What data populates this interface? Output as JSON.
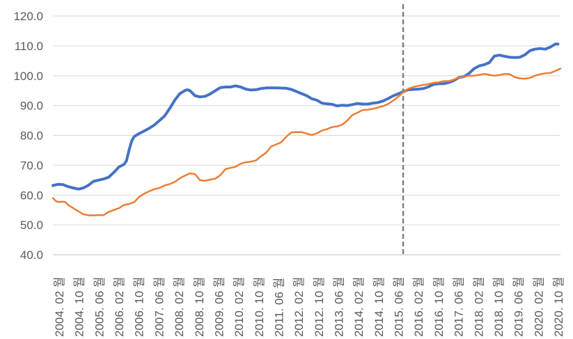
{
  "chart_data": {
    "type": "line",
    "title": "",
    "xlabel": "",
    "ylabel": "",
    "ylim": [
      40,
      120
    ],
    "y_ticks": [
      "40.0",
      "50.0",
      "60.0",
      "70.0",
      "80.0",
      "90.0",
      "100.0",
      "110.0",
      "120.0"
    ],
    "x_tick_labels": [
      "2004. 02 월",
      "2004. 10 월",
      "2005. 06 월",
      "2006. 02 월",
      "2006. 10 월",
      "2007. 06 월",
      "2008. 02 월",
      "2008. 10 월",
      "2009. 06 월",
      "2010. 02 월",
      "2010. 10 월",
      "2011. 06 월",
      "2012. 02 월",
      "2012. 10 월",
      "2013. 06 월",
      "2014. 02 월",
      "2014. 10 월",
      "2015. 06 월",
      "2016. 02 월",
      "2016. 10 월",
      "2017. 06 월",
      "2018. 02 월",
      "2018. 10 월",
      "2019. 06 월",
      "2020. 02 월",
      "2020. 10 월"
    ],
    "x_range": [
      "2004-02",
      "2020-10"
    ],
    "grid": "horizontal",
    "legend": "none",
    "reference_line": {
      "x": "2015-08",
      "style": "dashed",
      "color": "#7f7f7f"
    },
    "series": [
      {
        "color": "#4472c4",
        "points": [
          [
            "2004-02",
            63.2
          ],
          [
            "2004-04",
            63.6
          ],
          [
            "2004-06",
            63.5
          ],
          [
            "2004-08",
            62.8
          ],
          [
            "2004-10",
            62.4
          ],
          [
            "2004-12",
            62.0
          ],
          [
            "2005-02",
            62.4
          ],
          [
            "2005-04",
            63.3
          ],
          [
            "2005-06",
            64.6
          ],
          [
            "2005-08",
            65.0
          ],
          [
            "2005-10",
            65.4
          ],
          [
            "2005-12",
            66.0
          ],
          [
            "2006-02",
            67.6
          ],
          [
            "2006-04",
            69.4
          ],
          [
            "2006-06",
            70.3
          ],
          [
            "2006-07",
            71.5
          ],
          [
            "2006-08",
            75.0
          ],
          [
            "2006-09",
            78.0
          ],
          [
            "2006-10",
            79.6
          ],
          [
            "2006-12",
            80.6
          ],
          [
            "2007-02",
            81.5
          ],
          [
            "2007-04",
            82.4
          ],
          [
            "2007-06",
            83.5
          ],
          [
            "2007-08",
            85.0
          ],
          [
            "2007-10",
            86.5
          ],
          [
            "2007-12",
            89.0
          ],
          [
            "2008-02",
            91.8
          ],
          [
            "2008-04",
            94.0
          ],
          [
            "2008-06",
            95.0
          ],
          [
            "2008-07",
            95.3
          ],
          [
            "2008-08",
            95.0
          ],
          [
            "2008-10",
            93.3
          ],
          [
            "2008-12",
            92.9
          ],
          [
            "2009-02",
            93.1
          ],
          [
            "2009-04",
            93.9
          ],
          [
            "2009-06",
            95.0
          ],
          [
            "2009-08",
            96.0
          ],
          [
            "2009-10",
            96.2
          ],
          [
            "2009-12",
            96.2
          ],
          [
            "2010-02",
            96.6
          ],
          [
            "2010-04",
            96.2
          ],
          [
            "2010-06",
            95.5
          ],
          [
            "2010-08",
            95.2
          ],
          [
            "2010-10",
            95.3
          ],
          [
            "2010-12",
            95.7
          ],
          [
            "2011-02",
            95.9
          ],
          [
            "2011-06",
            95.9
          ],
          [
            "2011-10",
            95.8
          ],
          [
            "2011-12",
            95.4
          ],
          [
            "2012-02",
            94.7
          ],
          [
            "2012-06",
            93.3
          ],
          [
            "2012-08",
            92.3
          ],
          [
            "2012-10",
            91.8
          ],
          [
            "2012-12",
            90.8
          ],
          [
            "2013-02",
            90.6
          ],
          [
            "2013-04",
            90.4
          ],
          [
            "2013-06",
            89.9
          ],
          [
            "2013-08",
            90.1
          ],
          [
            "2013-10",
            90.0
          ],
          [
            "2013-12",
            90.3
          ],
          [
            "2014-02",
            90.7
          ],
          [
            "2014-04",
            90.5
          ],
          [
            "2014-06",
            90.5
          ],
          [
            "2014-08",
            90.8
          ],
          [
            "2014-10",
            91.0
          ],
          [
            "2014-12",
            91.5
          ],
          [
            "2015-02",
            92.3
          ],
          [
            "2015-04",
            93.2
          ],
          [
            "2015-06",
            93.9
          ],
          [
            "2015-08",
            94.6
          ],
          [
            "2015-10",
            95.3
          ],
          [
            "2015-12",
            95.4
          ],
          [
            "2016-02",
            95.5
          ],
          [
            "2016-04",
            95.7
          ],
          [
            "2016-06",
            96.3
          ],
          [
            "2016-08",
            97.1
          ],
          [
            "2016-10",
            97.3
          ],
          [
            "2016-12",
            97.3
          ],
          [
            "2017-02",
            97.7
          ],
          [
            "2017-04",
            98.4
          ],
          [
            "2017-06",
            99.4
          ],
          [
            "2017-08",
            99.7
          ],
          [
            "2017-10",
            100.8
          ],
          [
            "2017-12",
            102.4
          ],
          [
            "2018-02",
            103.3
          ],
          [
            "2018-04",
            103.7
          ],
          [
            "2018-06",
            104.4
          ],
          [
            "2018-08",
            106.6
          ],
          [
            "2018-10",
            106.9
          ],
          [
            "2018-12",
            106.5
          ],
          [
            "2019-02",
            106.2
          ],
          [
            "2019-04",
            106.1
          ],
          [
            "2019-06",
            106.2
          ],
          [
            "2019-08",
            107.0
          ],
          [
            "2019-10",
            108.4
          ],
          [
            "2019-12",
            108.9
          ],
          [
            "2020-02",
            109.1
          ],
          [
            "2020-04",
            108.9
          ],
          [
            "2020-06",
            109.6
          ],
          [
            "2020-08",
            110.6
          ],
          [
            "2020-09",
            110.6
          ]
        ]
      },
      {
        "color": "#ed7d31",
        "points": [
          [
            "2004-02",
            59.0
          ],
          [
            "2004-03",
            58.1
          ],
          [
            "2004-04",
            57.7
          ],
          [
            "2004-06",
            57.8
          ],
          [
            "2004-07",
            57.6
          ],
          [
            "2004-08",
            56.7
          ],
          [
            "2004-10",
            55.6
          ],
          [
            "2004-12",
            54.6
          ],
          [
            "2005-02",
            53.6
          ],
          [
            "2005-04",
            53.2
          ],
          [
            "2005-06",
            53.2
          ],
          [
            "2005-08",
            53.3
          ],
          [
            "2005-10",
            53.3
          ],
          [
            "2005-12",
            54.4
          ],
          [
            "2006-02",
            55.0
          ],
          [
            "2006-04",
            55.6
          ],
          [
            "2006-06",
            56.7
          ],
          [
            "2006-08",
            57.0
          ],
          [
            "2006-10",
            57.6
          ],
          [
            "2006-12",
            59.4
          ],
          [
            "2007-02",
            60.5
          ],
          [
            "2007-04",
            61.3
          ],
          [
            "2007-06",
            62.0
          ],
          [
            "2007-08",
            62.4
          ],
          [
            "2007-10",
            63.2
          ],
          [
            "2007-12",
            63.7
          ],
          [
            "2008-02",
            64.4
          ],
          [
            "2008-04",
            65.6
          ],
          [
            "2008-06",
            66.5
          ],
          [
            "2008-08",
            67.3
          ],
          [
            "2008-10",
            67.0
          ],
          [
            "2008-12",
            65.0
          ],
          [
            "2009-02",
            64.8
          ],
          [
            "2009-04",
            65.2
          ],
          [
            "2009-06",
            65.5
          ],
          [
            "2009-08",
            66.7
          ],
          [
            "2009-10",
            68.7
          ],
          [
            "2009-12",
            69.1
          ],
          [
            "2010-02",
            69.5
          ],
          [
            "2010-04",
            70.5
          ],
          [
            "2010-06",
            71.0
          ],
          [
            "2010-08",
            71.2
          ],
          [
            "2010-10",
            71.6
          ],
          [
            "2010-12",
            73.0
          ],
          [
            "2011-02",
            74.2
          ],
          [
            "2011-04",
            76.3
          ],
          [
            "2011-06",
            77.0
          ],
          [
            "2011-08",
            77.7
          ],
          [
            "2011-10",
            79.6
          ],
          [
            "2011-12",
            81.0
          ],
          [
            "2012-02",
            81.1
          ],
          [
            "2012-04",
            81.1
          ],
          [
            "2012-06",
            80.6
          ],
          [
            "2012-08",
            80.1
          ],
          [
            "2012-10",
            80.7
          ],
          [
            "2012-12",
            81.6
          ],
          [
            "2013-02",
            82.1
          ],
          [
            "2013-04",
            82.8
          ],
          [
            "2013-06",
            83.0
          ],
          [
            "2013-08",
            83.6
          ],
          [
            "2013-10",
            85.0
          ],
          [
            "2013-12",
            86.8
          ],
          [
            "2014-02",
            87.6
          ],
          [
            "2014-04",
            88.5
          ],
          [
            "2014-06",
            88.6
          ],
          [
            "2014-08",
            88.9
          ],
          [
            "2014-10",
            89.3
          ],
          [
            "2014-12",
            89.8
          ],
          [
            "2015-02",
            90.5
          ],
          [
            "2015-04",
            91.6
          ],
          [
            "2015-06",
            92.9
          ],
          [
            "2015-08",
            94.4
          ],
          [
            "2015-10",
            95.6
          ],
          [
            "2015-12",
            96.2
          ],
          [
            "2016-02",
            96.6
          ],
          [
            "2016-04",
            96.9
          ],
          [
            "2016-06",
            97.2
          ],
          [
            "2016-08",
            97.6
          ],
          [
            "2016-10",
            97.8
          ],
          [
            "2016-12",
            98.2
          ],
          [
            "2017-02",
            98.2
          ],
          [
            "2017-04",
            98.7
          ],
          [
            "2017-06",
            99.4
          ],
          [
            "2017-08",
            99.7
          ],
          [
            "2017-10",
            100.0
          ],
          [
            "2017-12",
            100.0
          ],
          [
            "2018-02",
            100.3
          ],
          [
            "2018-04",
            100.6
          ],
          [
            "2018-06",
            100.3
          ],
          [
            "2018-08",
            100.0
          ],
          [
            "2018-10",
            100.2
          ],
          [
            "2018-12",
            100.6
          ],
          [
            "2019-02",
            100.5
          ],
          [
            "2019-04",
            99.5
          ],
          [
            "2019-06",
            99.1
          ],
          [
            "2019-08",
            99.0
          ],
          [
            "2019-10",
            99.3
          ],
          [
            "2019-12",
            100.0
          ],
          [
            "2020-02",
            100.5
          ],
          [
            "2020-04",
            100.8
          ],
          [
            "2020-06",
            100.9
          ],
          [
            "2020-08",
            101.6
          ],
          [
            "2020-10",
            102.4
          ]
        ]
      }
    ]
  }
}
